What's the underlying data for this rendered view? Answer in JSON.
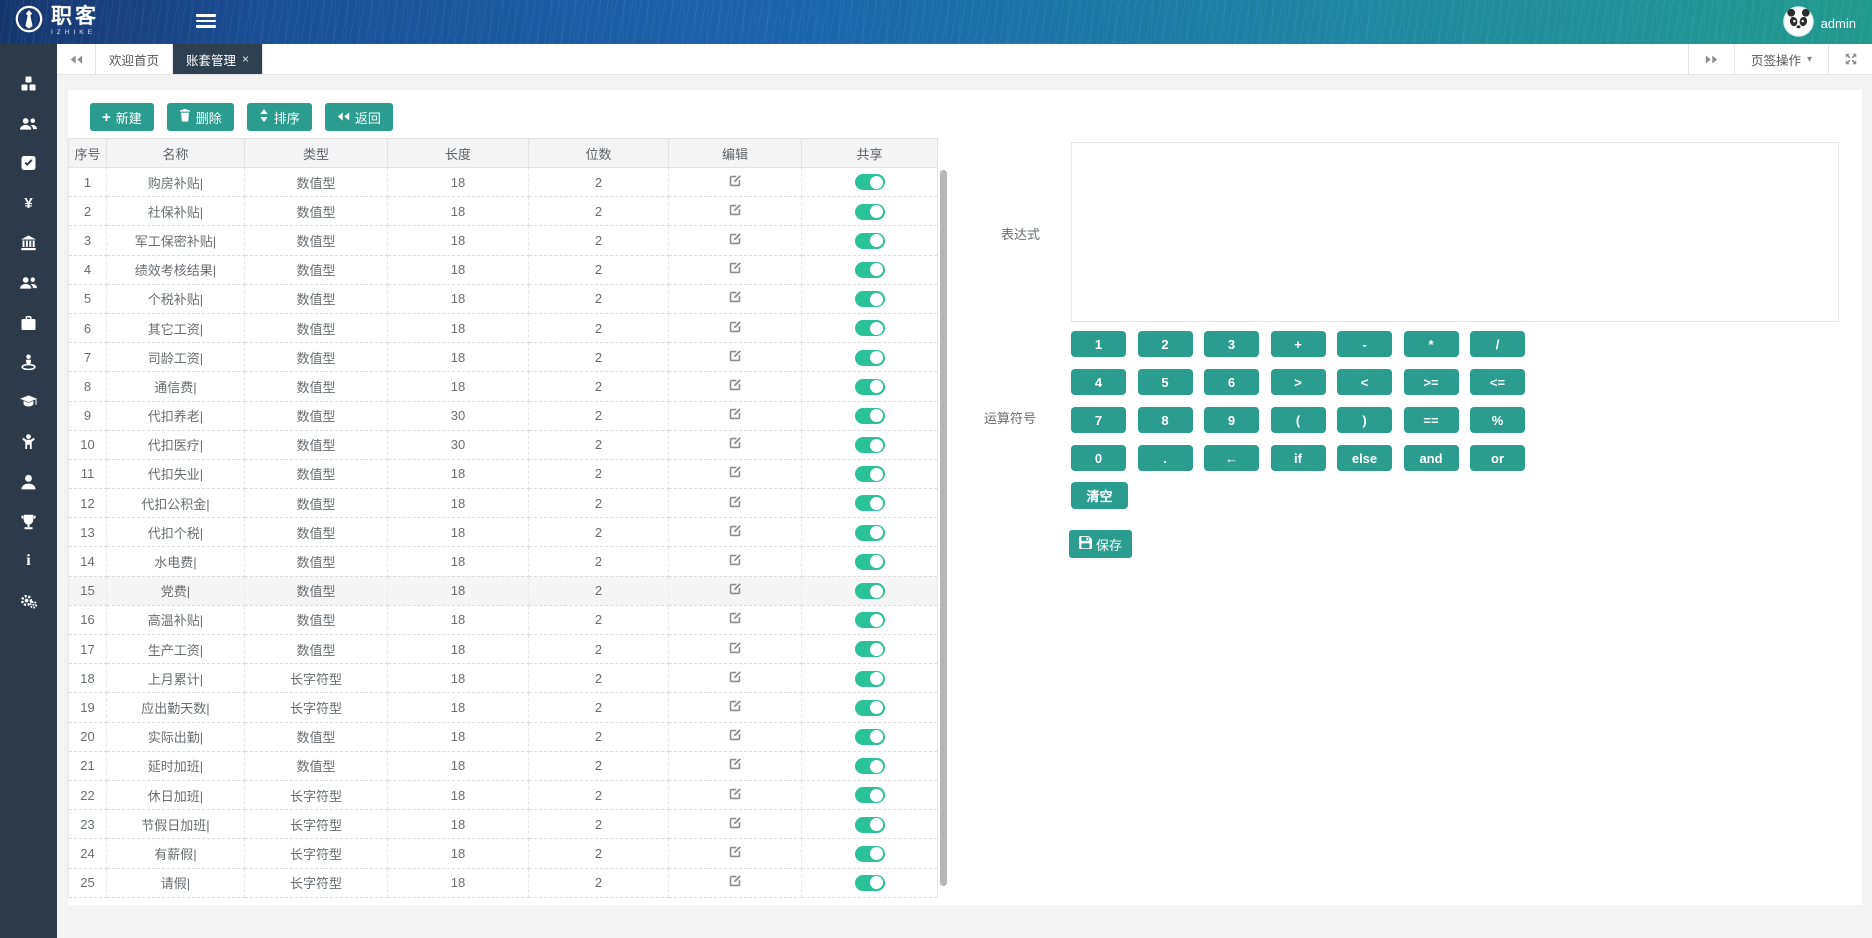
{
  "header": {
    "logo_text": "职客",
    "logo_sub": "IZHIKE",
    "username": "admin"
  },
  "tabbar": {
    "tabs": [
      {
        "label": "欢迎首页",
        "active": false,
        "closable": false
      },
      {
        "label": "账套管理",
        "active": true,
        "closable": true
      }
    ],
    "ops_label": "页签操作"
  },
  "toolbar": {
    "new": "新建",
    "del": "删除",
    "sort": "排序",
    "back": "返回"
  },
  "table": {
    "columns": [
      "序号",
      "名称",
      "类型",
      "长度",
      "位数",
      "编辑",
      "共享"
    ],
    "rows": [
      {
        "no": "1",
        "name": "购房补贴|",
        "type": "数值型",
        "len": "18",
        "digits": "2",
        "shared": true
      },
      {
        "no": "2",
        "name": "社保补贴|",
        "type": "数值型",
        "len": "18",
        "digits": "2",
        "shared": true
      },
      {
        "no": "3",
        "name": "军工保密补贴|",
        "type": "数值型",
        "len": "18",
        "digits": "2",
        "shared": true
      },
      {
        "no": "4",
        "name": "绩效考核结果|",
        "type": "数值型",
        "len": "18",
        "digits": "2",
        "shared": true
      },
      {
        "no": "5",
        "name": "个税补贴|",
        "type": "数值型",
        "len": "18",
        "digits": "2",
        "shared": true
      },
      {
        "no": "6",
        "name": "其它工资|",
        "type": "数值型",
        "len": "18",
        "digits": "2",
        "shared": true
      },
      {
        "no": "7",
        "name": "司龄工资|",
        "type": "数值型",
        "len": "18",
        "digits": "2",
        "shared": true
      },
      {
        "no": "8",
        "name": "通信费|",
        "type": "数值型",
        "len": "18",
        "digits": "2",
        "shared": true
      },
      {
        "no": "9",
        "name": "代扣养老|",
        "type": "数值型",
        "len": "30",
        "digits": "2",
        "shared": true
      },
      {
        "no": "10",
        "name": "代扣医疗|",
        "type": "数值型",
        "len": "30",
        "digits": "2",
        "shared": true
      },
      {
        "no": "11",
        "name": "代扣失业|",
        "type": "数值型",
        "len": "18",
        "digits": "2",
        "shared": true
      },
      {
        "no": "12",
        "name": "代扣公积金|",
        "type": "数值型",
        "len": "18",
        "digits": "2",
        "shared": true
      },
      {
        "no": "13",
        "name": "代扣个税|",
        "type": "数值型",
        "len": "18",
        "digits": "2",
        "shared": true
      },
      {
        "no": "14",
        "name": "水电费|",
        "type": "数值型",
        "len": "18",
        "digits": "2",
        "shared": true
      },
      {
        "no": "15",
        "name": "党费|",
        "type": "数值型",
        "len": "18",
        "digits": "2",
        "shared": true,
        "highlight": true
      },
      {
        "no": "16",
        "name": "高温补贴|",
        "type": "数值型",
        "len": "18",
        "digits": "2",
        "shared": true
      },
      {
        "no": "17",
        "name": "生产工资|",
        "type": "数值型",
        "len": "18",
        "digits": "2",
        "shared": true
      },
      {
        "no": "18",
        "name": "上月累计|",
        "type": "长字符型",
        "len": "18",
        "digits": "2",
        "shared": true
      },
      {
        "no": "19",
        "name": "应出勤天数|",
        "type": "长字符型",
        "len": "18",
        "digits": "2",
        "shared": true
      },
      {
        "no": "20",
        "name": "实际出勤|",
        "type": "数值型",
        "len": "18",
        "digits": "2",
        "shared": true
      },
      {
        "no": "21",
        "name": "延时加班|",
        "type": "数值型",
        "len": "18",
        "digits": "2",
        "shared": true
      },
      {
        "no": "22",
        "name": "休日加班|",
        "type": "长字符型",
        "len": "18",
        "digits": "2",
        "shared": true
      },
      {
        "no": "23",
        "name": "节假日加班|",
        "type": "长字符型",
        "len": "18",
        "digits": "2",
        "shared": true
      },
      {
        "no": "24",
        "name": "有薪假|",
        "type": "长字符型",
        "len": "18",
        "digits": "2",
        "shared": true
      },
      {
        "no": "25",
        "name": "请假|",
        "type": "长字符型",
        "len": "18",
        "digits": "2",
        "shared": true
      }
    ]
  },
  "expression": {
    "label": "表达式",
    "value": ""
  },
  "operators": {
    "label": "运算符号",
    "keys": [
      [
        "1",
        "2",
        "3",
        "+",
        "-",
        "*",
        "/"
      ],
      [
        "4",
        "5",
        "6",
        ">",
        "<",
        ">=",
        "<="
      ],
      [
        "7",
        "8",
        "9",
        "(",
        ")",
        "==",
        "%"
      ],
      [
        "0",
        ".",
        "←",
        "if",
        "else",
        "and",
        "or"
      ]
    ],
    "clear": "清空",
    "save": "保存"
  },
  "sidebar": {
    "icons": [
      "cubes",
      "users",
      "check-square",
      "yen",
      "bank",
      "team",
      "briefcase",
      "street-view",
      "graduation-cap",
      "child",
      "user",
      "trophy",
      "info",
      "cogs"
    ]
  },
  "colors": {
    "accent": "#2a9d8f",
    "toggle_on": "#2bc199",
    "sidebar_bg": "#2d3a4a",
    "active_tab_bg": "#2f4050",
    "header_blue": "#1c64ab",
    "header_teal": "#219b8c"
  }
}
